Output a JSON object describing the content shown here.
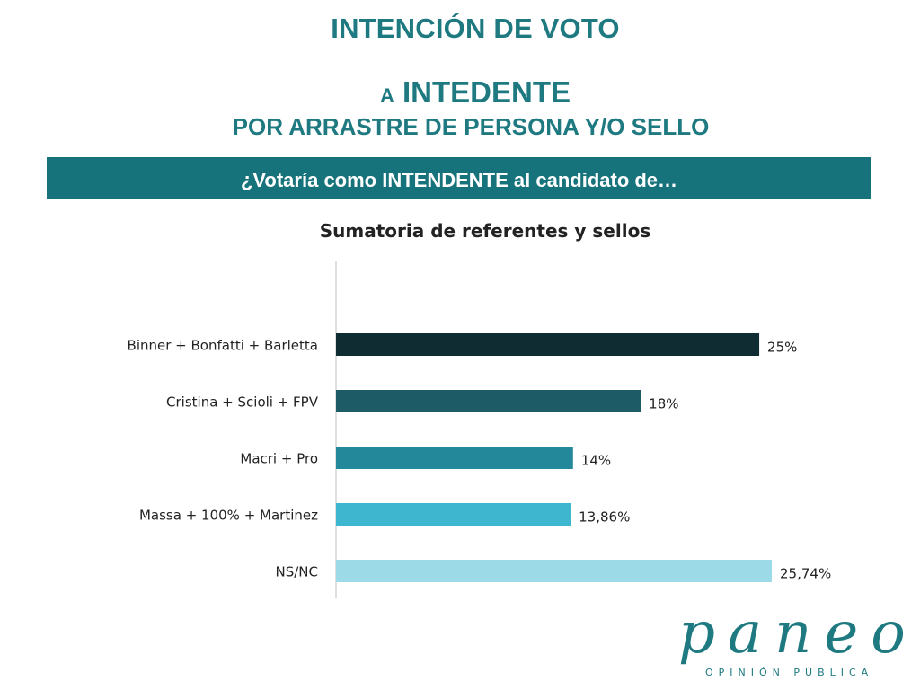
{
  "header": {
    "title_line1": "INTENCIÓN DE VOTO",
    "title_line2_prefix": "A",
    "title_line2_main": "INTEDENTE",
    "title_line3": "POR ARRASTRE DE PERSONA Y/O SELLO"
  },
  "banner": {
    "question": "¿Votaría como INTENDENTE al candidato de…"
  },
  "chart_data": {
    "type": "bar",
    "orientation": "horizontal",
    "title": "Sumatoria de referentes y sellos",
    "categories": [
      "Binner + Bonfatti + Barletta",
      "Cristina + Scioli + FPV",
      "Macri + Pro",
      "Massa + 100% + Martinez",
      "NS/NC"
    ],
    "values": [
      25,
      18,
      14,
      13.86,
      25.74
    ],
    "data_labels": [
      "25%",
      "18%",
      "14%",
      "13,86%",
      "25,74%"
    ],
    "colors": [
      "#0f2c33",
      "#1d5c66",
      "#23889a",
      "#3eb6d0",
      "#9bdae6"
    ],
    "xlim": [
      0,
      25.74
    ],
    "grid": false,
    "legend": "none"
  },
  "brand": {
    "logo_text": "paneo",
    "tagline": "OPINIÓN PÚBLICA"
  }
}
